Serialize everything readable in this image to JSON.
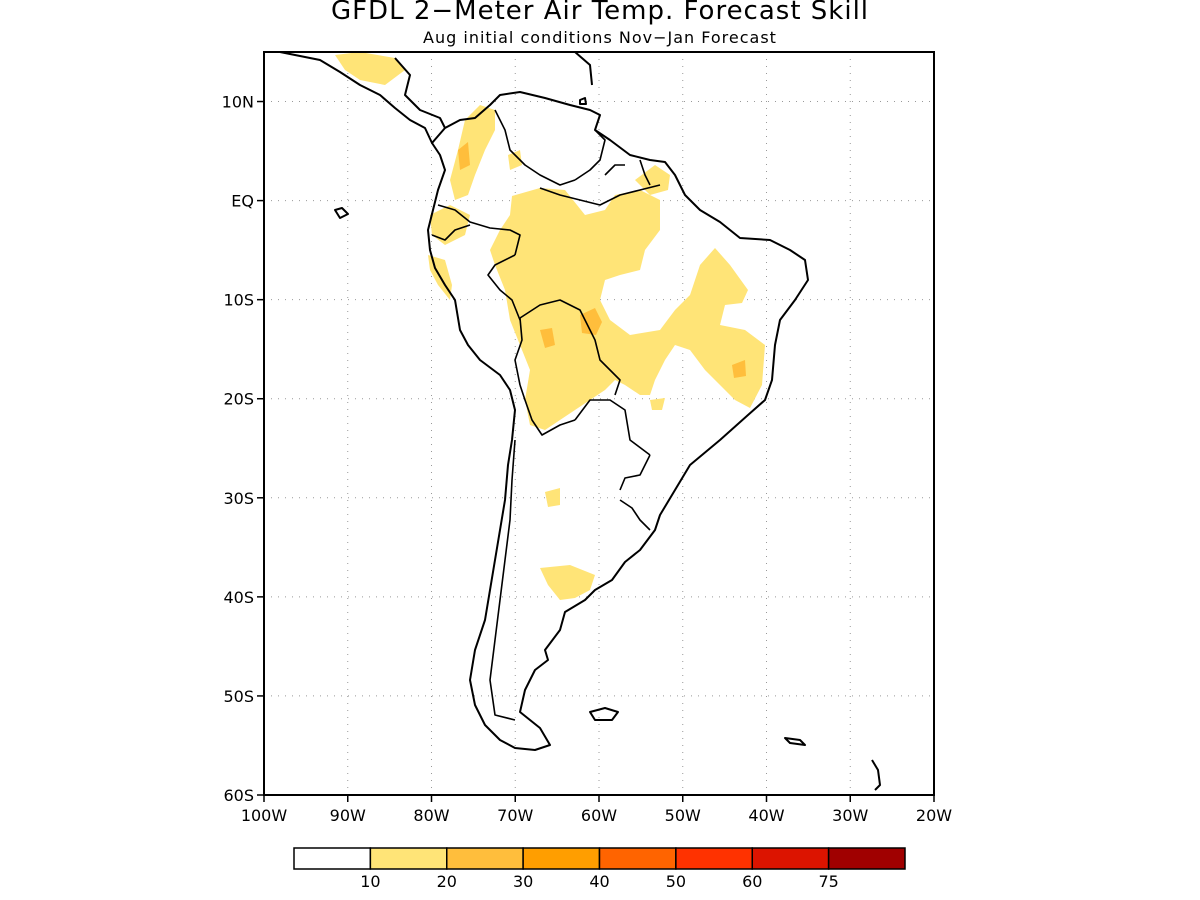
{
  "title": "GFDL 2−Meter Air Temp. Forecast Skill",
  "subtitle": "Aug initial conditions  Nov−Jan Forecast",
  "map": {
    "lon_range": [
      -100,
      -20
    ],
    "lat_range": [
      -60,
      15
    ],
    "lat_ticks": [
      {
        "value": 10,
        "label": "10N"
      },
      {
        "value": 0,
        "label": "EQ"
      },
      {
        "value": -10,
        "label": "10S"
      },
      {
        "value": -20,
        "label": "20S"
      },
      {
        "value": -30,
        "label": "30S"
      },
      {
        "value": -40,
        "label": "40S"
      },
      {
        "value": -50,
        "label": "50S"
      },
      {
        "value": -60,
        "label": "60S"
      }
    ],
    "lon_ticks": [
      {
        "value": -100,
        "label": "100W"
      },
      {
        "value": -90,
        "label": "90W"
      },
      {
        "value": -80,
        "label": "80W"
      },
      {
        "value": -70,
        "label": "70W"
      },
      {
        "value": -60,
        "label": "60W"
      },
      {
        "value": -50,
        "label": "50W"
      },
      {
        "value": -40,
        "label": "40W"
      },
      {
        "value": -30,
        "label": "30W"
      },
      {
        "value": -20,
        "label": "20W"
      }
    ],
    "grid": "dotted"
  },
  "colorbar": {
    "boundaries": [
      "10",
      "20",
      "30",
      "40",
      "50",
      "60",
      "75"
    ],
    "colors": [
      "#ffffff",
      "#ffe477",
      "#ffbe3c",
      "#ff9e00",
      "#ff6400",
      "#ff3200",
      "#dc1400",
      "#a00000"
    ]
  }
}
